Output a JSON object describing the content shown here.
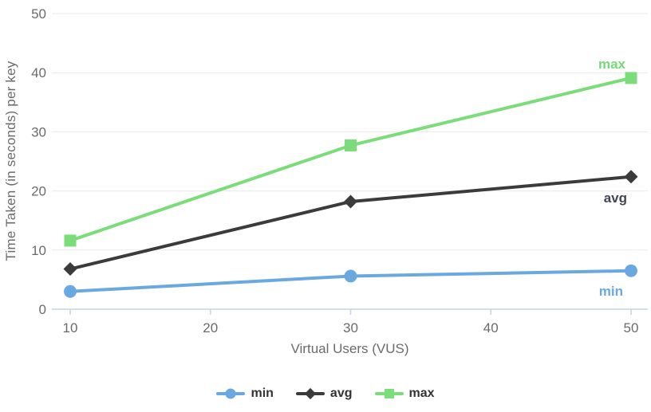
{
  "colors": {
    "background": "#FFFFFF",
    "axis_line": "#C9D4E8",
    "gridline": "#E9E9E9",
    "tick_text": "#6B6B6B",
    "axis_title_text": "#6B6B6B",
    "legend_text": "#333333"
  },
  "chart_data": {
    "type": "line",
    "x": [
      10,
      30,
      50
    ],
    "series": [
      {
        "name": "min",
        "values": [
          3.0,
          5.6,
          6.5
        ],
        "color": "#69A8E0",
        "marker": "circle",
        "label_color": "#69A8E0"
      },
      {
        "name": "avg",
        "values": [
          6.8,
          18.2,
          22.4
        ],
        "color": "#3B3B3B",
        "marker": "diamond",
        "label_color": "#414655"
      },
      {
        "name": "max",
        "values": [
          11.6,
          27.7,
          39.1
        ],
        "color": "#7BDD79",
        "marker": "square",
        "label_color": "#76D977"
      }
    ],
    "title": "",
    "xlabel": "Virtual Users (VUS)",
    "ylabel": "Time Taken (in seconds) per key",
    "xlim": [
      10,
      50
    ],
    "ylim": [
      0,
      50
    ],
    "x_ticks": [
      10,
      20,
      30,
      40,
      50
    ],
    "y_ticks": [
      0,
      10,
      20,
      30,
      40,
      50
    ],
    "grid": true,
    "legend_position": "bottom",
    "end_labels": [
      "min",
      "avg",
      "max"
    ]
  }
}
